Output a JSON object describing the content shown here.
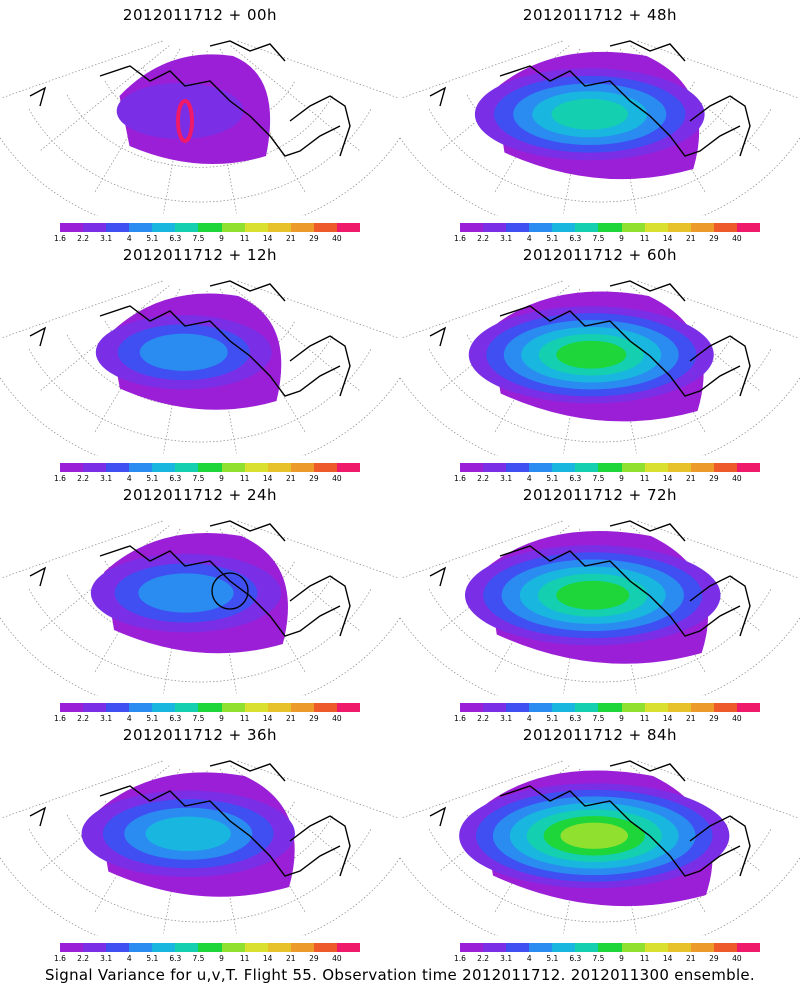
{
  "panels": [
    {
      "title": "2012011712 + 00h",
      "spread": 0.0,
      "hotspot": true,
      "circle": false
    },
    {
      "title": "2012011712 + 48h",
      "spread": 0.65,
      "hotspot": false,
      "circle": false
    },
    {
      "title": "2012011712 + 12h",
      "spread": 0.25,
      "hotspot": false,
      "circle": false
    },
    {
      "title": "2012011712 + 60h",
      "spread": 0.75,
      "hotspot": false,
      "circle": false
    },
    {
      "title": "2012011712 + 24h",
      "spread": 0.4,
      "hotspot": false,
      "circle": true
    },
    {
      "title": "2012011712 + 72h",
      "spread": 0.85,
      "hotspot": false,
      "circle": false
    },
    {
      "title": "2012011712 + 36h",
      "spread": 0.55,
      "hotspot": false,
      "circle": false
    },
    {
      "title": "2012011712 + 84h",
      "spread": 0.95,
      "hotspot": false,
      "circle": false
    }
  ],
  "colorbar": {
    "colors": [
      "#9b1fd6",
      "#7a2fe6",
      "#3f4ff2",
      "#2a8cf0",
      "#19b6e0",
      "#14cfb0",
      "#1fd63a",
      "#8fe02f",
      "#d9e02f",
      "#e8c22a",
      "#ec9a2a",
      "#ef5a2a",
      "#ef1a6a"
    ],
    "labels": [
      "1.6",
      "2.2",
      "3.1",
      "4",
      "5.1",
      "6.3",
      "7.5",
      "9",
      "11",
      "14",
      "21",
      "29",
      "40"
    ]
  },
  "caption": "Signal Variance for u,v,T. Flight 55. Observation time 2012011712. 2012011300 ensemble."
}
